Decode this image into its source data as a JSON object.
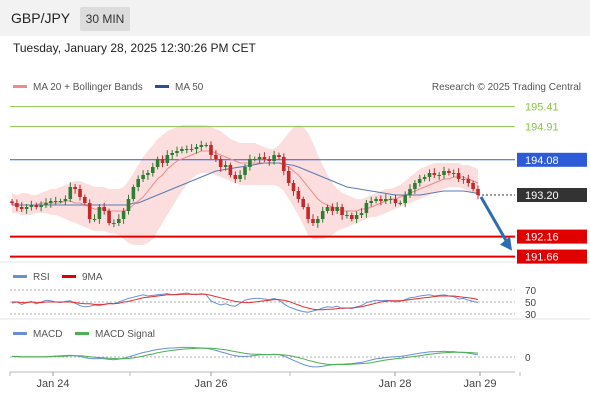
{
  "header": {
    "pair": "GBP/JPY",
    "timeframe": "30 MIN",
    "datetime": "Tuesday, January 28, 2025 12:30:26 PM CET"
  },
  "legend": {
    "ma20": "MA 20 + Bollinger Bands",
    "ma50": "MA 50",
    "credit": "Research © 2025 Trading Central",
    "rsi": "RSI",
    "rsi_ma": "9MA",
    "macd": "MACD",
    "macd_signal": "MACD Signal"
  },
  "colors": {
    "candle_up": "#2e7d32",
    "candle_down": "#c62828",
    "ma20": "#ef8a8a",
    "ma50": "#5a7ab5",
    "bollinger_fill": "#fbd0d0",
    "resistance": "#8bc34a",
    "pivot": "#2d5bd8",
    "support": "#e00000",
    "current": "#333333",
    "arrow": "#2f6bb0",
    "rsi": "#6b8fd6",
    "rsi_ma": "#e03030",
    "macd": "#6b8fd6",
    "macd_signal": "#4caf50"
  },
  "chart_data": {
    "type": "candlestick",
    "price_ylim": [
      191.5,
      195.6
    ],
    "x_ticks": [
      "Jan 24",
      "Jan 26",
      "Jan 28",
      "Jan 29"
    ],
    "levels": [
      {
        "label": "195.41",
        "value": 195.41,
        "kind": "resistance"
      },
      {
        "label": "194.91",
        "value": 194.91,
        "kind": "resistance"
      },
      {
        "label": "194.08",
        "value": 194.08,
        "kind": "pivot"
      },
      {
        "label": "193.20",
        "value": 193.2,
        "kind": "current"
      },
      {
        "label": "192.16",
        "value": 192.16,
        "kind": "support"
      },
      {
        "label": "191.66",
        "value": 191.66,
        "kind": "support"
      }
    ],
    "close": [
      193.0,
      192.9,
      192.85,
      192.9,
      192.95,
      192.9,
      192.95,
      193.0,
      193.05,
      193.05,
      193.05,
      193.1,
      193.4,
      193.35,
      193.15,
      193.0,
      192.6,
      192.6,
      192.9,
      192.8,
      192.5,
      192.5,
      192.6,
      192.8,
      193.1,
      193.4,
      193.6,
      193.7,
      193.75,
      193.9,
      194.1,
      194.0,
      194.2,
      194.25,
      194.3,
      194.35,
      194.35,
      194.35,
      194.4,
      194.45,
      194.45,
      194.2,
      194.1,
      193.9,
      193.95,
      193.7,
      193.6,
      193.7,
      193.9,
      194.1,
      194.1,
      194.15,
      194.1,
      194.05,
      194.2,
      194.15,
      193.8,
      193.5,
      193.3,
      193.1,
      192.9,
      192.6,
      192.5,
      192.6,
      192.8,
      192.9,
      192.8,
      192.9,
      192.7,
      192.7,
      192.6,
      192.7,
      192.75,
      193.0,
      193.05,
      193.1,
      193.05,
      193.1,
      193.1,
      193.0,
      193.0,
      193.2,
      193.35,
      193.5,
      193.6,
      193.65,
      193.75,
      193.7,
      193.7,
      193.8,
      193.75,
      193.75,
      193.6,
      193.6,
      193.5,
      193.35,
      193.2
    ],
    "ma20": [
      193.0,
      192.95,
      192.95,
      192.95,
      192.95,
      192.95,
      193.0,
      193.0,
      193.0,
      193.0,
      193.0,
      193.05,
      193.05,
      193.0,
      193.0,
      192.95,
      192.9,
      192.85,
      192.85,
      192.85,
      192.8,
      192.8,
      192.8,
      192.8,
      192.85,
      192.95,
      193.05,
      193.15,
      193.3,
      193.45,
      193.6,
      193.7,
      193.85,
      193.95,
      194.05,
      194.1,
      194.15,
      194.2,
      194.25,
      194.3,
      194.3,
      194.3,
      194.25,
      194.2,
      194.15,
      194.1,
      194.05,
      194.0,
      194.0,
      194.0,
      194.0,
      194.0,
      194.0,
      194.0,
      194.0,
      194.0,
      193.95,
      193.9,
      193.8,
      193.7,
      193.55,
      193.4,
      193.25,
      193.1,
      193.0,
      192.95,
      192.9,
      192.85,
      192.8,
      192.8,
      192.8,
      192.8,
      192.85,
      192.85,
      192.9,
      192.95,
      193.0,
      193.05,
      193.1,
      193.1,
      193.15,
      193.2,
      193.25,
      193.3,
      193.35,
      193.4,
      193.45,
      193.5,
      193.55,
      193.6,
      193.6,
      193.65,
      193.65,
      193.65,
      193.6,
      193.55,
      193.5
    ],
    "boll_upper": [
      193.25,
      193.2,
      193.25,
      193.25,
      193.2,
      193.2,
      193.25,
      193.3,
      193.35,
      193.35,
      193.4,
      193.45,
      193.5,
      193.55,
      193.55,
      193.5,
      193.45,
      193.4,
      193.4,
      193.4,
      193.35,
      193.35,
      193.35,
      193.4,
      193.55,
      193.75,
      193.95,
      194.15,
      194.3,
      194.45,
      194.6,
      194.7,
      194.8,
      194.85,
      194.9,
      194.95,
      194.95,
      194.95,
      194.95,
      194.95,
      194.95,
      194.9,
      194.85,
      194.8,
      194.7,
      194.6,
      194.55,
      194.5,
      194.5,
      194.5,
      194.5,
      194.45,
      194.4,
      194.35,
      194.35,
      194.45,
      194.6,
      194.75,
      194.9,
      194.95,
      194.9,
      194.75,
      194.5,
      194.2,
      193.95,
      193.7,
      193.5,
      193.35,
      193.25,
      193.2,
      193.15,
      193.1,
      193.1,
      193.15,
      193.2,
      193.25,
      193.3,
      193.35,
      193.35,
      193.4,
      193.45,
      193.55,
      193.65,
      193.75,
      193.85,
      193.9,
      193.95,
      194.0,
      194.0,
      194.0,
      194.0,
      194.0,
      194.0,
      193.95,
      193.95,
      193.9,
      193.85
    ],
    "boll_lower": [
      192.75,
      192.75,
      192.7,
      192.7,
      192.7,
      192.75,
      192.75,
      192.75,
      192.7,
      192.7,
      192.65,
      192.6,
      192.55,
      192.5,
      192.45,
      192.4,
      192.35,
      192.3,
      192.3,
      192.3,
      192.25,
      192.25,
      192.2,
      192.1,
      192.0,
      191.95,
      191.95,
      191.95,
      192.0,
      192.1,
      192.3,
      192.5,
      192.7,
      192.9,
      193.1,
      193.3,
      193.45,
      193.6,
      193.7,
      193.75,
      193.75,
      193.75,
      193.7,
      193.65,
      193.6,
      193.55,
      193.5,
      193.45,
      193.45,
      193.45,
      193.45,
      193.45,
      193.45,
      193.45,
      193.45,
      193.4,
      193.3,
      193.1,
      192.9,
      192.7,
      192.45,
      192.2,
      192.1,
      192.1,
      192.1,
      192.15,
      192.2,
      192.3,
      192.35,
      192.4,
      192.45,
      192.5,
      192.55,
      192.6,
      192.65,
      192.65,
      192.7,
      192.75,
      192.8,
      192.85,
      192.9,
      192.95,
      193.0,
      193.05,
      193.1,
      193.15,
      193.2,
      193.25,
      193.3,
      193.35,
      193.4,
      193.4,
      193.4,
      193.35,
      193.3,
      193.25,
      193.2
    ],
    "ma50": [
      192.95,
      192.95,
      192.95,
      192.95,
      192.95,
      192.95,
      192.95,
      192.95,
      192.95,
      192.95,
      192.95,
      192.95,
      192.95,
      192.95,
      192.95,
      192.95,
      192.95,
      192.95,
      192.95,
      192.95,
      192.95,
      192.95,
      192.95,
      192.95,
      192.95,
      193.0,
      193.0,
      193.05,
      193.1,
      193.15,
      193.2,
      193.25,
      193.3,
      193.35,
      193.4,
      193.45,
      193.5,
      193.55,
      193.6,
      193.65,
      193.7,
      193.75,
      193.8,
      193.82,
      193.84,
      193.86,
      193.88,
      193.9,
      193.92,
      193.94,
      193.96,
      193.98,
      194.0,
      194.0,
      194.0,
      194.0,
      193.98,
      193.96,
      193.94,
      193.9,
      193.85,
      193.8,
      193.75,
      193.7,
      193.65,
      193.6,
      193.55,
      193.5,
      193.45,
      193.4,
      193.38,
      193.36,
      193.34,
      193.32,
      193.3,
      193.28,
      193.26,
      193.24,
      193.22,
      193.2,
      193.2,
      193.2,
      193.2,
      193.2,
      193.2,
      193.22,
      193.24,
      193.26,
      193.28,
      193.3,
      193.3,
      193.3,
      193.3,
      193.3,
      193.28,
      193.26,
      193.24
    ],
    "rsi": {
      "ticks": [
        70,
        50,
        30
      ],
      "ylim": [
        25,
        75
      ],
      "rsi": [
        48,
        50,
        46,
        49,
        51,
        47,
        50,
        53,
        52,
        50,
        49,
        51,
        52,
        48,
        44,
        42,
        43,
        45,
        44,
        46,
        48,
        47,
        50,
        53,
        56,
        58,
        60,
        62,
        60,
        61,
        62,
        63,
        64,
        62,
        63,
        64,
        65,
        63,
        62,
        64,
        62,
        52,
        48,
        45,
        47,
        44,
        43,
        48,
        53,
        55,
        56,
        56,
        55,
        54,
        56,
        53,
        47,
        42,
        39,
        36,
        34,
        33,
        35,
        37,
        40,
        42,
        41,
        43,
        39,
        40,
        39,
        42,
        44,
        49,
        51,
        53,
        52,
        53,
        52,
        50,
        51,
        54,
        57,
        58,
        60,
        61,
        62,
        60,
        61,
        62,
        60,
        59,
        55,
        56,
        53,
        51,
        49
      ],
      "ma": [
        50,
        50,
        49,
        49,
        50,
        49,
        49,
        50,
        50,
        50,
        50,
        50,
        50,
        49,
        48,
        47,
        47,
        46,
        46,
        46,
        47,
        47,
        48,
        50,
        51,
        53,
        55,
        57,
        58,
        59,
        60,
        61,
        62,
        62,
        62,
        63,
        63,
        63,
        63,
        63,
        63,
        61,
        59,
        57,
        55,
        53,
        51,
        50,
        49,
        49,
        50,
        51,
        52,
        53,
        54,
        54,
        53,
        51,
        48,
        45,
        42,
        40,
        38,
        37,
        37,
        38,
        38,
        39,
        40,
        40,
        40,
        41,
        42,
        44,
        46,
        48,
        50,
        51,
        52,
        52,
        52,
        53,
        54,
        55,
        56,
        57,
        58,
        59,
        60,
        60,
        60,
        60,
        59,
        58,
        57,
        56,
        54
      ]
    },
    "macd": {
      "ticks": [
        0
      ],
      "ylim": [
        -0.5,
        0.5
      ],
      "macd": [
        0.02,
        0.01,
        0.0,
        0.0,
        0.01,
        0.0,
        0.0,
        0.01,
        0.02,
        0.03,
        0.04,
        0.05,
        0.06,
        0.04,
        0.02,
        -0.02,
        -0.05,
        -0.06,
        -0.05,
        -0.06,
        -0.08,
        -0.09,
        -0.07,
        -0.04,
        0.0,
        0.05,
        0.1,
        0.15,
        0.18,
        0.22,
        0.25,
        0.27,
        0.29,
        0.3,
        0.31,
        0.32,
        0.32,
        0.32,
        0.31,
        0.3,
        0.29,
        0.26,
        0.22,
        0.17,
        0.13,
        0.08,
        0.04,
        0.02,
        0.02,
        0.03,
        0.05,
        0.07,
        0.08,
        0.08,
        0.09,
        0.08,
        0.03,
        -0.04,
        -0.11,
        -0.18,
        -0.25,
        -0.3,
        -0.33,
        -0.33,
        -0.31,
        -0.28,
        -0.26,
        -0.24,
        -0.24,
        -0.23,
        -0.22,
        -0.2,
        -0.18,
        -0.14,
        -0.1,
        -0.06,
        -0.04,
        -0.02,
        0.0,
        0.01,
        0.02,
        0.04,
        0.07,
        0.1,
        0.13,
        0.15,
        0.17,
        0.18,
        0.18,
        0.19,
        0.18,
        0.18,
        0.16,
        0.15,
        0.13,
        0.1,
        0.07
      ],
      "signal": [
        0.02,
        0.02,
        0.01,
        0.01,
        0.01,
        0.01,
        0.01,
        0.01,
        0.01,
        0.02,
        0.02,
        0.03,
        0.04,
        0.04,
        0.04,
        0.03,
        0.01,
        -0.01,
        -0.02,
        -0.03,
        -0.04,
        -0.05,
        -0.06,
        -0.06,
        -0.05,
        -0.03,
        0.0,
        0.03,
        0.07,
        0.1,
        0.14,
        0.17,
        0.2,
        0.22,
        0.24,
        0.26,
        0.27,
        0.28,
        0.29,
        0.29,
        0.29,
        0.29,
        0.28,
        0.26,
        0.24,
        0.21,
        0.18,
        0.15,
        0.12,
        0.1,
        0.09,
        0.09,
        0.08,
        0.08,
        0.08,
        0.08,
        0.07,
        0.05,
        0.02,
        -0.02,
        -0.06,
        -0.11,
        -0.15,
        -0.19,
        -0.22,
        -0.24,
        -0.25,
        -0.25,
        -0.25,
        -0.25,
        -0.24,
        -0.23,
        -0.22,
        -0.21,
        -0.19,
        -0.16,
        -0.13,
        -0.1,
        -0.08,
        -0.06,
        -0.04,
        -0.02,
        0.0,
        0.02,
        0.04,
        0.07,
        0.09,
        0.11,
        0.13,
        0.14,
        0.15,
        0.16,
        0.16,
        0.16,
        0.15,
        0.14,
        0.13
      ]
    }
  }
}
